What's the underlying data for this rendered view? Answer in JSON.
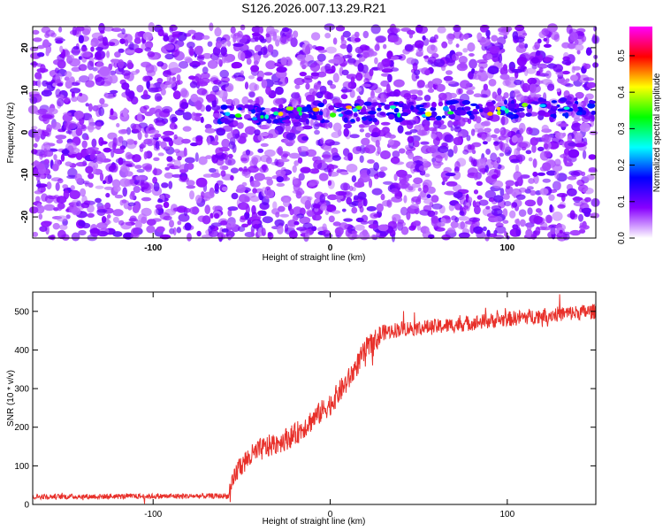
{
  "title": "S126.2026.007.13.29.R21",
  "chart_data": [
    {
      "type": "heatmap",
      "xlabel": "Height of straight line (km)",
      "ylabel": "Frequency (Hz)",
      "xlim": [
        -168,
        150
      ],
      "ylim": [
        -25,
        25
      ],
      "xticks": [
        "-100",
        "0",
        "100"
      ],
      "yticks": [
        "-20",
        "-10",
        "0",
        "10",
        "20"
      ],
      "colorbar": {
        "label": "Normalized spectral amplitude",
        "range": [
          0,
          0.58
        ],
        "ticks": [
          "0.0",
          "0.1",
          "0.2",
          "0.3",
          "0.4",
          "0.5"
        ],
        "colors": [
          "#ffffff",
          "#8800ff",
          "#0000ff",
          "#00ffff",
          "#00ff00",
          "#ffff00",
          "#ff0000",
          "#ff00ff"
        ]
      },
      "signal_band": {
        "x_start": -66,
        "x_end": 150,
        "freq_at_start": 4,
        "freq_at_end": 6
      }
    },
    {
      "type": "line",
      "xlabel": "Height of straight line (km)",
      "ylabel": "SNR (10 * v/v)",
      "xlim": [
        -168,
        150
      ],
      "ylim": [
        0,
        550
      ],
      "xticks": [
        "-100",
        "0",
        "100"
      ],
      "yticks": [
        "0",
        "100",
        "200",
        "300",
        "400",
        "500"
      ],
      "line_color": "#e8302a",
      "series": [
        {
          "profile": [
            [
              -168,
              20
            ],
            [
              -57,
              22
            ],
            [
              -52,
              95
            ],
            [
              -46,
              120
            ],
            [
              -40,
              140
            ],
            [
              -30,
              160
            ],
            [
              -20,
              180
            ],
            [
              -10,
              220
            ],
            [
              0,
              260
            ],
            [
              10,
              320
            ],
            [
              20,
              400
            ],
            [
              30,
              445
            ],
            [
              40,
              455
            ],
            [
              60,
              460
            ],
            [
              80,
              470
            ],
            [
              100,
              480
            ],
            [
              120,
              490
            ],
            [
              150,
              500
            ]
          ]
        }
      ]
    }
  ]
}
